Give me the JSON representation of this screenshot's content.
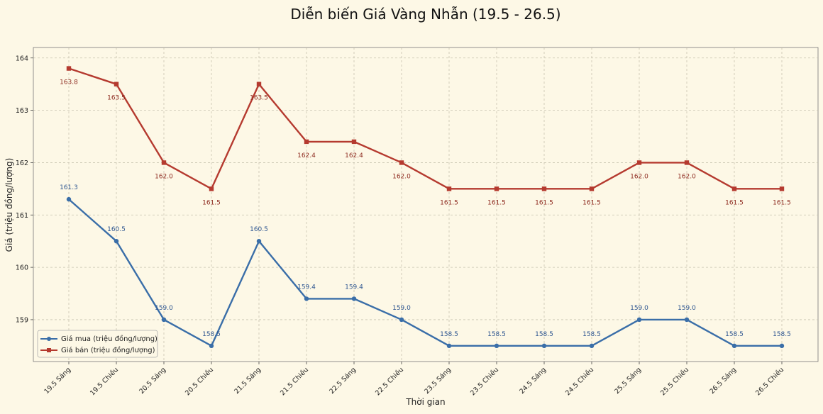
{
  "chart_data": {
    "type": "line",
    "title": "Diễn biến Giá Vàng Nhẫn (19.5 - 26.5)",
    "xlabel": "Thời gian",
    "ylabel": "Giá (triệu đồng/lượng)",
    "ylim": [
      158.2,
      164.2
    ],
    "yticks": [
      "159",
      "160",
      "161",
      "162",
      "163",
      "164"
    ],
    "grid": true,
    "legend_position": "bottom-left",
    "categories": [
      "19.5 Sáng",
      "19.5 Chiều",
      "20.5 Sáng",
      "20.5 Chiều",
      "21.5 Sáng",
      "21.5 Chiều",
      "22.5 Sáng",
      "22.5 Chiều",
      "23.5 Sáng",
      "23.5 Chiều",
      "24.5 Sáng",
      "24.5 Chiều",
      "25.5 Sáng",
      "25.5 Chiều",
      "26.5 Sáng",
      "26.5 Chiều"
    ],
    "series": [
      {
        "name": "Giá mua (triệu đồng/lượng)",
        "color": "#3a6ea8",
        "marker": "circle",
        "values": [
          161.3,
          160.5,
          159.0,
          158.5,
          160.5,
          159.4,
          159.4,
          159.0,
          158.5,
          158.5,
          158.5,
          158.5,
          159.0,
          159.0,
          158.5,
          158.5
        ],
        "labels": [
          "161.3",
          "160.5",
          "159.0",
          "158.5",
          "160.5",
          "159.4",
          "159.4",
          "159.0",
          "158.5",
          "158.5",
          "158.5",
          "158.5",
          "159.0",
          "159.0",
          "158.5",
          "158.5"
        ]
      },
      {
        "name": "Giá bán (triệu đồng/lượng)",
        "color": "#b53a2f",
        "marker": "square",
        "values": [
          163.8,
          163.5,
          162.0,
          161.5,
          163.5,
          162.4,
          162.4,
          162.0,
          161.5,
          161.5,
          161.5,
          161.5,
          162.0,
          162.0,
          161.5,
          161.5
        ],
        "labels": [
          "163.8",
          "163.5",
          "162.0",
          "161.5",
          "163.5",
          "162.4",
          "162.4",
          "162.0",
          "161.5",
          "161.5",
          "161.5",
          "161.5",
          "162.0",
          "162.0",
          "161.5",
          "161.5"
        ]
      }
    ]
  }
}
